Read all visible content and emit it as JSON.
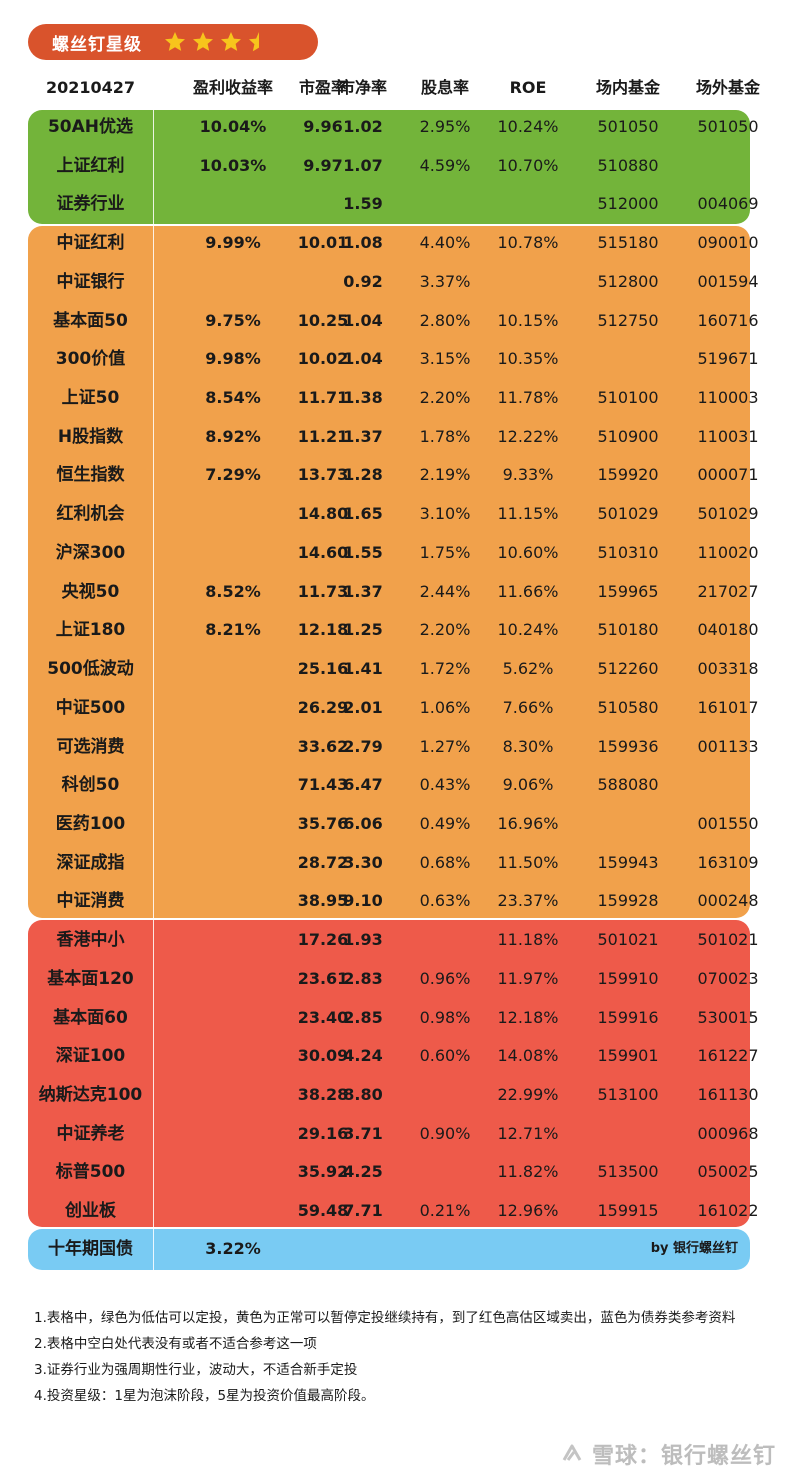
{
  "badge": {
    "title": "螺丝钉星级",
    "stars": 3.5
  },
  "header": {
    "date": "20210427",
    "earnings_yield": "盈利收益率",
    "pe": "市盈率",
    "pb": "市净率",
    "dividend_yield": "股息率",
    "roe": "ROE",
    "on_exchange_fund": "场内基金",
    "off_exchange_fund": "场外基金"
  },
  "colors": {
    "green": "#73b43a",
    "orange": "#f1a14b",
    "red": "#ee5a4a",
    "blue": "#79cbf3",
    "badge": "#d9532c",
    "star": "#f7c51c"
  },
  "rows": [
    {
      "name": "50AH优选",
      "ey": "10.04%",
      "pe": "9.96",
      "pb": "1.02",
      "dy": "2.95%",
      "roe": "10.24%",
      "in": "501050",
      "out": "501050"
    },
    {
      "name": "上证红利",
      "ey": "10.03%",
      "pe": "9.97",
      "pb": "1.07",
      "dy": "4.59%",
      "roe": "10.70%",
      "in": "510880",
      "out": ""
    },
    {
      "name": "证券行业",
      "ey": "",
      "pe": "",
      "pb": "1.59",
      "dy": "",
      "roe": "",
      "in": "512000",
      "out": "004069"
    },
    {
      "name": "中证红利",
      "ey": "9.99%",
      "pe": "10.01",
      "pb": "1.08",
      "dy": "4.40%",
      "roe": "10.78%",
      "in": "515180",
      "out": "090010"
    },
    {
      "name": "中证银行",
      "ey": "",
      "pe": "",
      "pb": "0.92",
      "dy": "3.37%",
      "roe": "",
      "in": "512800",
      "out": "001594"
    },
    {
      "name": "基本面50",
      "ey": "9.75%",
      "pe": "10.25",
      "pb": "1.04",
      "dy": "2.80%",
      "roe": "10.15%",
      "in": "512750",
      "out": "160716"
    },
    {
      "name": "300价值",
      "ey": "9.98%",
      "pe": "10.02",
      "pb": "1.04",
      "dy": "3.15%",
      "roe": "10.35%",
      "in": "",
      "out": "519671"
    },
    {
      "name": "上证50",
      "ey": "8.54%",
      "pe": "11.71",
      "pb": "1.38",
      "dy": "2.20%",
      "roe": "11.78%",
      "in": "510100",
      "out": "110003"
    },
    {
      "name": "H股指数",
      "ey": "8.92%",
      "pe": "11.21",
      "pb": "1.37",
      "dy": "1.78%",
      "roe": "12.22%",
      "in": "510900",
      "out": "110031"
    },
    {
      "name": "恒生指数",
      "ey": "7.29%",
      "pe": "13.73",
      "pb": "1.28",
      "dy": "2.19%",
      "roe": "9.33%",
      "in": "159920",
      "out": "000071"
    },
    {
      "name": "红利机会",
      "ey": "",
      "pe": "14.80",
      "pb": "1.65",
      "dy": "3.10%",
      "roe": "11.15%",
      "in": "501029",
      "out": "501029"
    },
    {
      "name": "沪深300",
      "ey": "",
      "pe": "14.60",
      "pb": "1.55",
      "dy": "1.75%",
      "roe": "10.60%",
      "in": "510310",
      "out": "110020"
    },
    {
      "name": "央视50",
      "ey": "8.52%",
      "pe": "11.73",
      "pb": "1.37",
      "dy": "2.44%",
      "roe": "11.66%",
      "in": "159965",
      "out": "217027"
    },
    {
      "name": "上证180",
      "ey": "8.21%",
      "pe": "12.18",
      "pb": "1.25",
      "dy": "2.20%",
      "roe": "10.24%",
      "in": "510180",
      "out": "040180"
    },
    {
      "name": "500低波动",
      "ey": "",
      "pe": "25.16",
      "pb": "1.41",
      "dy": "1.72%",
      "roe": "5.62%",
      "in": "512260",
      "out": "003318"
    },
    {
      "name": "中证500",
      "ey": "",
      "pe": "26.29",
      "pb": "2.01",
      "dy": "1.06%",
      "roe": "7.66%",
      "in": "510580",
      "out": "161017"
    },
    {
      "name": "可选消费",
      "ey": "",
      "pe": "33.62",
      "pb": "2.79",
      "dy": "1.27%",
      "roe": "8.30%",
      "in": "159936",
      "out": "001133"
    },
    {
      "name": "科创50",
      "ey": "",
      "pe": "71.43",
      "pb": "6.47",
      "dy": "0.43%",
      "roe": "9.06%",
      "in": "588080",
      "out": ""
    },
    {
      "name": "医药100",
      "ey": "",
      "pe": "35.76",
      "pb": "6.06",
      "dy": "0.49%",
      "roe": "16.96%",
      "in": "",
      "out": "001550"
    },
    {
      "name": "深证成指",
      "ey": "",
      "pe": "28.72",
      "pb": "3.30",
      "dy": "0.68%",
      "roe": "11.50%",
      "in": "159943",
      "out": "163109"
    },
    {
      "name": "中证消费",
      "ey": "",
      "pe": "38.95",
      "pb": "9.10",
      "dy": "0.63%",
      "roe": "23.37%",
      "in": "159928",
      "out": "000248"
    },
    {
      "name": "香港中小",
      "ey": "",
      "pe": "17.26",
      "pb": "1.93",
      "dy": "",
      "roe": "11.18%",
      "in": "501021",
      "out": "501021"
    },
    {
      "name": "基本面120",
      "ey": "",
      "pe": "23.61",
      "pb": "2.83",
      "dy": "0.96%",
      "roe": "11.97%",
      "in": "159910",
      "out": "070023"
    },
    {
      "name": "基本面60",
      "ey": "",
      "pe": "23.40",
      "pb": "2.85",
      "dy": "0.98%",
      "roe": "12.18%",
      "in": "159916",
      "out": "530015"
    },
    {
      "name": "深证100",
      "ey": "",
      "pe": "30.09",
      "pb": "4.24",
      "dy": "0.60%",
      "roe": "14.08%",
      "in": "159901",
      "out": "161227"
    },
    {
      "name": "纳斯达克100",
      "ey": "",
      "pe": "38.28",
      "pb": "8.80",
      "dy": "",
      "roe": "22.99%",
      "in": "513100",
      "out": "161130"
    },
    {
      "name": "中证养老",
      "ey": "",
      "pe": "29.16",
      "pb": "3.71",
      "dy": "0.90%",
      "roe": "12.71%",
      "in": "",
      "out": "000968"
    },
    {
      "name": "标普500",
      "ey": "",
      "pe": "35.92",
      "pb": "4.25",
      "dy": "",
      "roe": "11.82%",
      "in": "513500",
      "out": "050025"
    },
    {
      "name": "创业板",
      "ey": "",
      "pe": "59.48",
      "pb": "7.71",
      "dy": "0.21%",
      "roe": "12.96%",
      "in": "159915",
      "out": "161022"
    }
  ],
  "bond": {
    "name": "十年期国债",
    "value": "3.22%",
    "credit": "by 银行螺丝钉"
  },
  "notes": [
    "1.表格中，绿色为低估可以定投，黄色为正常可以暂停定投继续持有，到了红色高估区域卖出，蓝色为债券类参考资料",
    "2.表格中空白处代表没有或者不适合参考这一项",
    "3.证券行业为强周期性行业，波动大，不适合新手定投",
    "4.投资星级：1星为泡沫阶段，5星为投资价值最高阶段。"
  ],
  "watermark": "雪球：银行螺丝钉"
}
